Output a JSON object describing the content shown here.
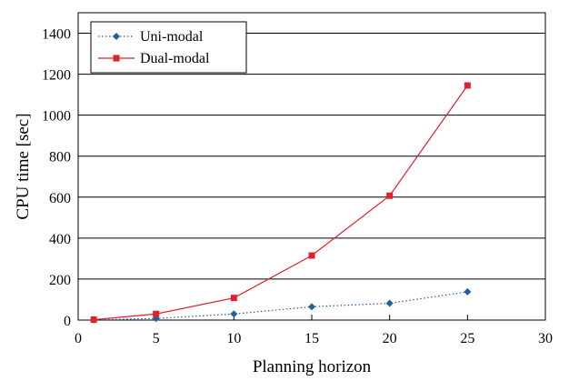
{
  "chart_data": {
    "type": "line",
    "title": "",
    "xlabel": "Planning horizon",
    "ylabel": "CPU time [sec]",
    "xlim": [
      0,
      30
    ],
    "ylim": [
      0,
      1500
    ],
    "x_ticks": [
      "0",
      "5",
      "10",
      "15",
      "20",
      "25",
      "30"
    ],
    "y_ticks": [
      "0",
      "200",
      "400",
      "600",
      "800",
      "1000",
      "1200",
      "1400"
    ],
    "grid": "horizontal",
    "legend_position": "top-left",
    "series": [
      {
        "name": "Uni-modal",
        "color": "#1f5fa8",
        "line_style": "dotted",
        "marker": "diamond",
        "x": [
          1,
          5,
          10,
          15,
          20,
          25
        ],
        "values": [
          1,
          8,
          30,
          65,
          82,
          138
        ]
      },
      {
        "name": "Dual-modal",
        "color": "#e0202a",
        "line_style": "solid",
        "marker": "square",
        "x": [
          1,
          5,
          10,
          15,
          20,
          25
        ],
        "values": [
          2,
          30,
          108,
          315,
          607,
          1145
        ]
      }
    ]
  }
}
